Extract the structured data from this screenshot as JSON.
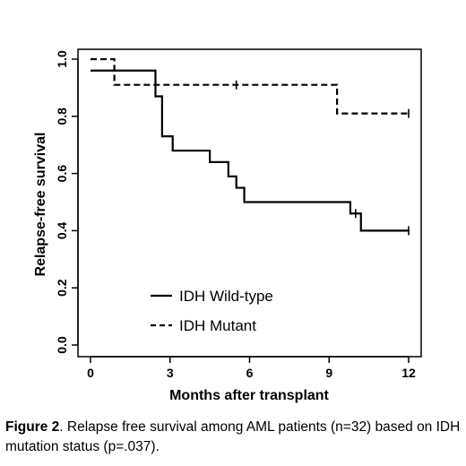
{
  "chart_data": {
    "type": "line",
    "xlabel": "Months after transplant",
    "ylabel": "Relapse-free survival",
    "xlim": [
      0,
      12
    ],
    "ylim": [
      0,
      1
    ],
    "x_ticks": [
      "0",
      "3",
      "6",
      "9",
      "12"
    ],
    "y_ticks": [
      "0.0",
      "0.2",
      "0.4",
      "0.6",
      "0.8",
      "1.0"
    ],
    "grid": false,
    "legend_position": "bottom-left",
    "series": [
      {
        "name": "IDH Wild-type",
        "style": "solid",
        "color": "#000000",
        "steps": [
          [
            0,
            0.96
          ],
          [
            2.2,
            0.96
          ],
          [
            2.45,
            0.87
          ],
          [
            2.7,
            0.73
          ],
          [
            3.1,
            0.68
          ],
          [
            4.5,
            0.64
          ],
          [
            5.2,
            0.59
          ],
          [
            5.5,
            0.55
          ],
          [
            5.8,
            0.5
          ],
          [
            9.8,
            0.46
          ],
          [
            10.2,
            0.4
          ],
          [
            12,
            0.4
          ]
        ],
        "censor_x": [
          10.0,
          12.0
        ]
      },
      {
        "name": "IDH Mutant",
        "style": "dashed",
        "color": "#000000",
        "steps": [
          [
            0,
            1.0
          ],
          [
            0.9,
            0.91
          ],
          [
            9.3,
            0.81
          ],
          [
            12,
            0.81
          ]
        ],
        "censor_x": [
          5.5,
          12.0
        ]
      }
    ]
  },
  "caption": {
    "label": "Figure 2",
    "text": ". Relapse free survival among AML patients (n=32) based on IDH mutation status (p=.037)."
  }
}
